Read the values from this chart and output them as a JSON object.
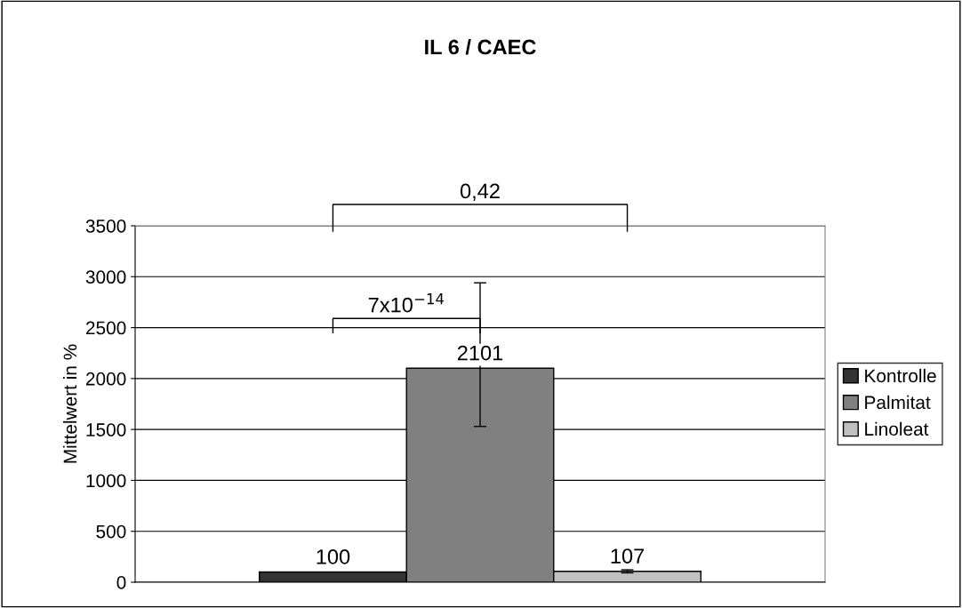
{
  "chart_data": {
    "type": "bar",
    "title": "IL 6 / CAEC",
    "ylabel": "Mittelwert in %",
    "categories": [
      null
    ],
    "series": [
      {
        "name": "Kontrolle",
        "color": "#333333",
        "values": [
          100
        ]
      },
      {
        "name": "Palmitat",
        "color": "#808080",
        "values": [
          2101
        ],
        "errors": [
          [
            1530,
            2940
          ]
        ]
      },
      {
        "name": "Linoleat",
        "color": "#c0c0c0",
        "values": [
          107
        ],
        "errors": [
          [
            92,
            122
          ]
        ]
      }
    ],
    "ylim": [
      0,
      3500
    ],
    "yticks": [
      0,
      500,
      1000,
      1500,
      2000,
      2500,
      3000,
      3500
    ],
    "grid": "y",
    "legend": "right",
    "data_labels": true,
    "annotations": [
      "7x10$^{−14}$",
      "0,42"
    ]
  }
}
